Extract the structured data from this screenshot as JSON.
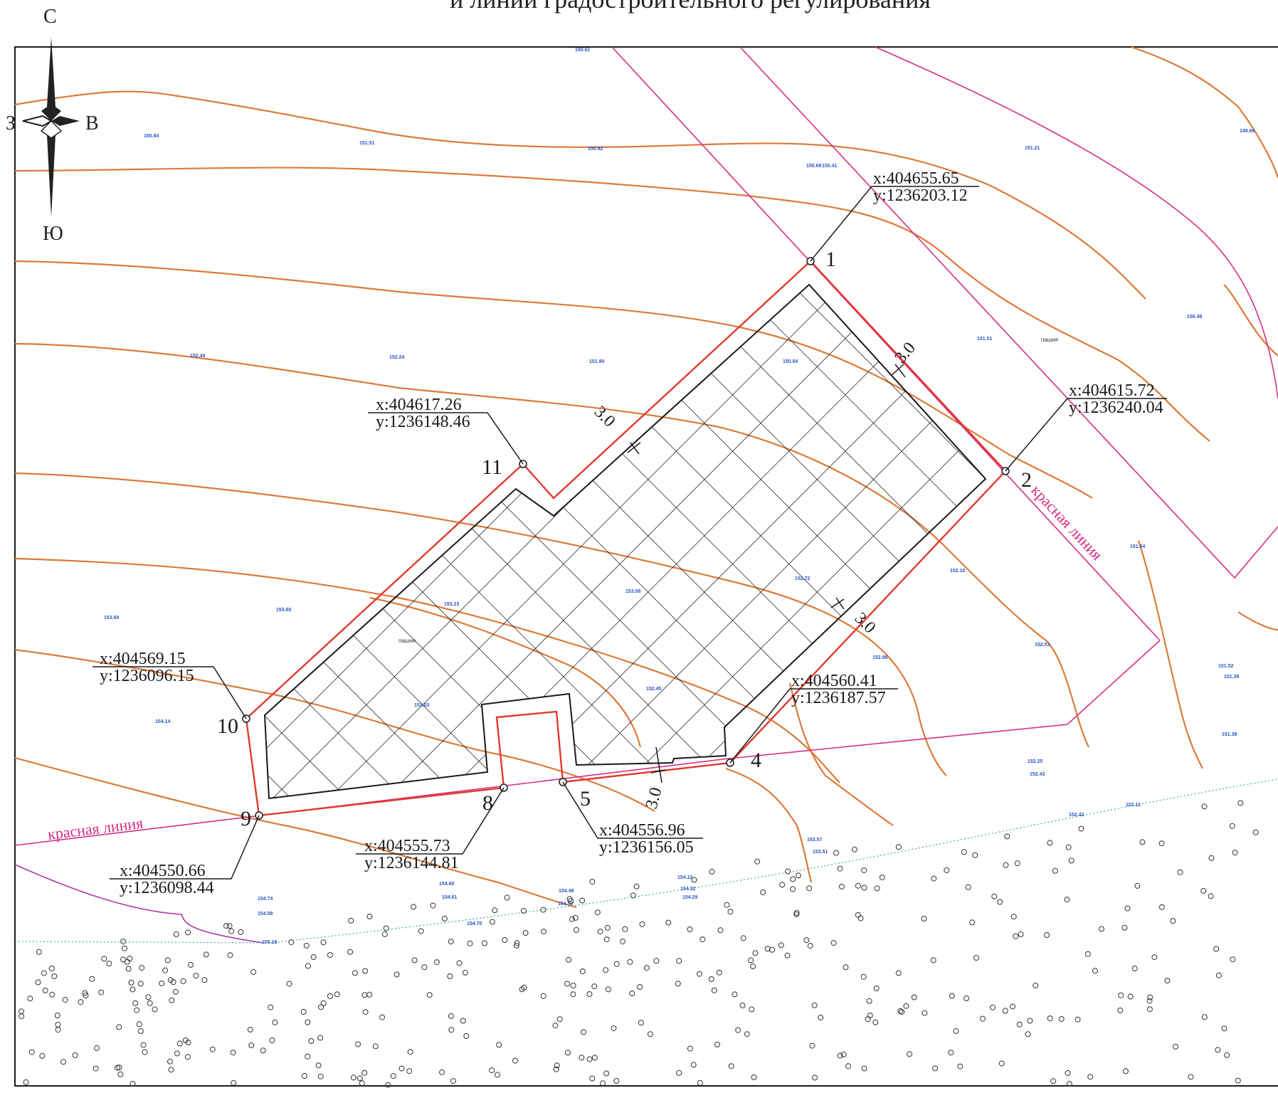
{
  "title": "и линии градостроительного регулирования",
  "compass": {
    "north": "С",
    "south": "Ю",
    "west": "З",
    "east": "В"
  },
  "colors": {
    "contour": "#dd7a3a",
    "red_line": "#d62f84",
    "plot_boundary": "#e23a2e",
    "hatch": "#1a1a1a",
    "elevation": "#2a55c4",
    "frame": "#1a1a1a"
  },
  "points": [
    {
      "id": "1",
      "label": "1",
      "x": "x:404655.65",
      "y": "y:1236203.12"
    },
    {
      "id": "2",
      "label": "2",
      "x": "x:404615.72",
      "y": "y:1236240.04"
    },
    {
      "id": "4",
      "label": "4",
      "x": "x:404560.41",
      "y": "y:1236187.57"
    },
    {
      "id": "5",
      "label": "5",
      "x": "x:404556.96",
      "y": "y:1236156.05"
    },
    {
      "id": "8",
      "label": "8",
      "x": "x:404555.73",
      "y": "y:1236144.81"
    },
    {
      "id": "9",
      "label": "9",
      "x": "x:404550.66",
      "y": "y:1236098.44"
    },
    {
      "id": "10",
      "label": "10",
      "x": "x:404569.15",
      "y": "y:1236096.15"
    },
    {
      "id": "11",
      "label": "11",
      "x": "x:404617.26",
      "y": "y:1236148.46"
    }
  ],
  "setbacks": [
    "3.0",
    "3.0",
    "3.0",
    "3.0"
  ],
  "red_line_labels": [
    "красная линия",
    "красная линия"
  ],
  "land_labels": [
    "пашня",
    "пашня"
  ],
  "elevations": [
    "150.61",
    "150.84",
    "151.51",
    "150.92",
    "150.69",
    "150.41",
    "151.21",
    "149.66",
    "152.44",
    "152.24",
    "151.90",
    "150.84",
    "150.48",
    "151.01",
    "153.60",
    "153.60",
    "153.23",
    "153.08",
    "152.72",
    "152.10",
    "151.54",
    "152.96",
    "152.53",
    "152.45",
    "153.03",
    "154.14",
    "152.25",
    "152.43",
    "152.42",
    "152.11",
    "151.52",
    "151.39",
    "151.38",
    "153.57",
    "153.51",
    "154.74",
    "154.58",
    "154.60",
    "154.61",
    "154.48",
    "154.50",
    "154.12",
    "154.32",
    "154.29",
    "154.70",
    "155.16"
  ]
}
